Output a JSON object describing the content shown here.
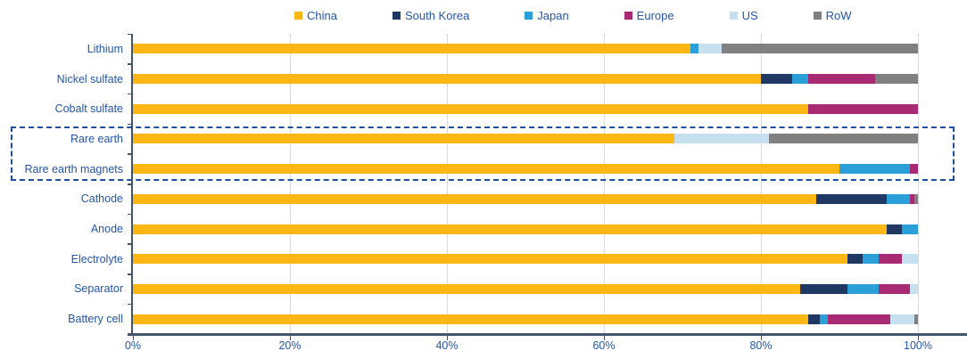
{
  "chart_data": {
    "type": "bar",
    "orientation": "horizontal",
    "stacked": true,
    "title": "",
    "xlabel": "",
    "ylabel": "",
    "xlim": [
      0,
      100
    ],
    "x_ticks": [
      "0%",
      "20%",
      "40%",
      "60%",
      "80%",
      "100%"
    ],
    "x_tick_values": [
      0,
      20,
      40,
      60,
      80,
      100
    ],
    "grid": "vertical",
    "legend_position": "top",
    "categories": [
      "Lithium",
      "Nickel sulfate",
      "Cobalt sulfate",
      "Rare earth",
      "Rare earth magnets",
      "Cathode",
      "Anode",
      "Electrolyte",
      "Separator",
      "Battery cell"
    ],
    "series": [
      {
        "name": "China",
        "color": "#FDB714",
        "values": [
          71,
          80,
          86,
          69,
          90,
          87,
          96,
          91,
          85,
          86
        ]
      },
      {
        "name": "South Korea",
        "color": "#1F3864",
        "values": [
          0,
          4,
          0,
          0,
          0,
          9,
          2,
          2,
          6,
          1.5
        ]
      },
      {
        "name": "Japan",
        "color": "#2A9FD8",
        "values": [
          1,
          2,
          0,
          0,
          9,
          3,
          2,
          2,
          4,
          1
        ]
      },
      {
        "name": "Europe",
        "color": "#A82A72",
        "values": [
          0,
          8.5,
          14,
          0,
          1,
          0.5,
          0,
          3,
          4,
          8
        ]
      },
      {
        "name": "US",
        "color": "#C6E0F0",
        "values": [
          3,
          0,
          0,
          12,
          0,
          0,
          0,
          2,
          1,
          3
        ]
      },
      {
        "name": "RoW",
        "color": "#808080",
        "values": [
          25,
          5.5,
          0,
          19,
          0,
          0.5,
          0,
          0,
          0,
          0.5
        ]
      }
    ],
    "highlighted_categories": [
      "Rare earth",
      "Rare earth magnets"
    ],
    "highlight_style": "dashed-blue-box"
  },
  "colors": {
    "text_blue": "#2456A5",
    "axis": "#44546A",
    "gridline": "#D9D9D9",
    "highlight_border": "#1F4E9C",
    "background": "#FFFFFF"
  }
}
